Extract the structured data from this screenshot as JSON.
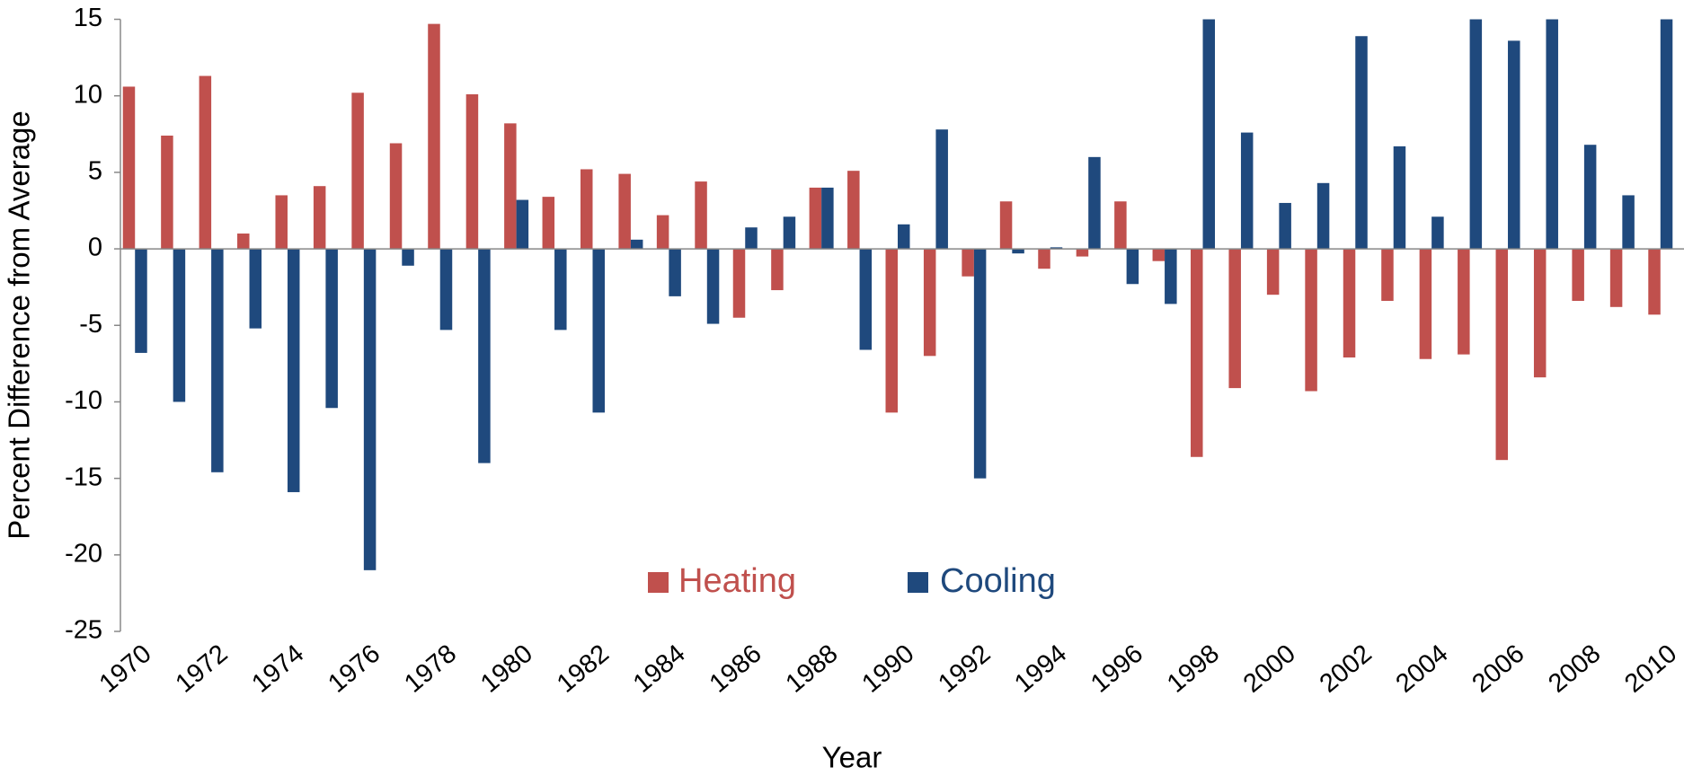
{
  "chart_data": {
    "type": "bar",
    "y_label": "Percent Difference from Average",
    "x_label": "Year",
    "categories": [
      "1970",
      null,
      "1972",
      null,
      "1974",
      null,
      "1976",
      null,
      "1978",
      null,
      "1980",
      null,
      "1982",
      null,
      "1984",
      null,
      "1986",
      null,
      "1988",
      null,
      "1990",
      null,
      "1992",
      null,
      "1994",
      null,
      "1996",
      null,
      "1998",
      null,
      "2000",
      null,
      "2002",
      null,
      "2004",
      null,
      "2006",
      null,
      "2008",
      null,
      "2010"
    ],
    "series": [
      {
        "name": "Heating",
        "color": "#c0504d",
        "values": [
          10.6,
          7.4,
          11.3,
          1.0,
          3.5,
          4.1,
          10.2,
          6.9,
          14.7,
          10.1,
          8.2,
          3.4,
          5.2,
          4.9,
          2.2,
          4.4,
          -4.5,
          -2.7,
          4.0,
          5.1,
          -10.7,
          -7.0,
          -1.8,
          3.1,
          -1.3,
          -0.5,
          3.1,
          -0.8,
          -13.6,
          -9.1,
          -3.0,
          -9.3,
          -7.1,
          -3.4,
          -7.2,
          -6.9,
          -13.8,
          -8.4,
          -3.4,
          -3.8,
          -4.3
        ]
      },
      {
        "name": "Cooling",
        "color": "#1f497d",
        "values": [
          -6.8,
          -10.0,
          -14.6,
          -5.2,
          -15.9,
          -10.4,
          -21.0,
          -1.1,
          -5.3,
          -14.0,
          3.2,
          -5.3,
          -10.7,
          0.6,
          -3.1,
          -4.9,
          1.4,
          2.1,
          4.0,
          -6.6,
          1.6,
          7.8,
          -15.0,
          -0.3,
          0.1,
          6.0,
          -2.3,
          -3.6,
          15,
          7.6,
          3.0,
          4.3,
          13.9,
          6.7,
          2.1,
          15,
          13.6,
          15,
          6.8,
          3.5,
          15
        ]
      }
    ],
    "ylim": [
      -25,
      15
    ],
    "yticks": [
      -25,
      -20,
      -15,
      -10,
      -5,
      0,
      5,
      10,
      15
    ],
    "grid": false
  }
}
